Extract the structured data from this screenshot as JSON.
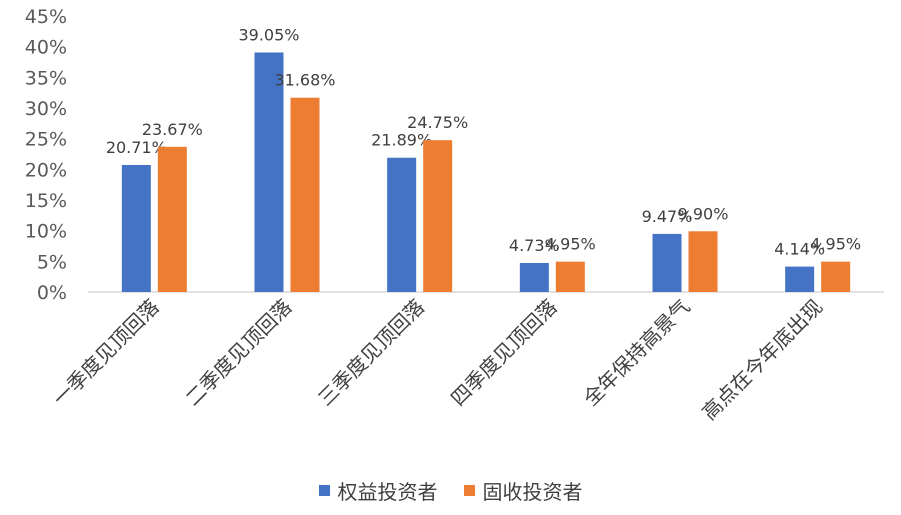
{
  "chart_data": {
    "type": "bar",
    "categories": [
      "一季度见顶回落",
      "二季度见顶回落",
      "三季度见顶回落",
      "四季度见顶回落",
      "全年保持高景气",
      "高点在今年底出现"
    ],
    "series": [
      {
        "name": "权益投资者",
        "values": [
          20.71,
          39.05,
          21.89,
          4.73,
          9.47,
          4.14
        ],
        "labels": [
          "20.71%",
          "39.05%",
          "21.89%",
          "4.73%",
          "9.47%",
          "4.14%"
        ],
        "color": "#4472C4"
      },
      {
        "name": "固收投资者",
        "values": [
          23.67,
          31.68,
          24.75,
          4.95,
          9.9,
          4.95
        ],
        "labels": [
          "23.67%",
          "31.68%",
          "24.75%",
          "4.95%",
          "9.90%",
          "4.95%"
        ],
        "color": "#ED7D31"
      }
    ],
    "yticks": [
      "0%",
      "5%",
      "10%",
      "15%",
      "20%",
      "25%",
      "30%",
      "35%",
      "40%",
      "45%"
    ],
    "ylim": [
      0,
      45
    ],
    "grid": false,
    "legend_position": "bottom"
  }
}
